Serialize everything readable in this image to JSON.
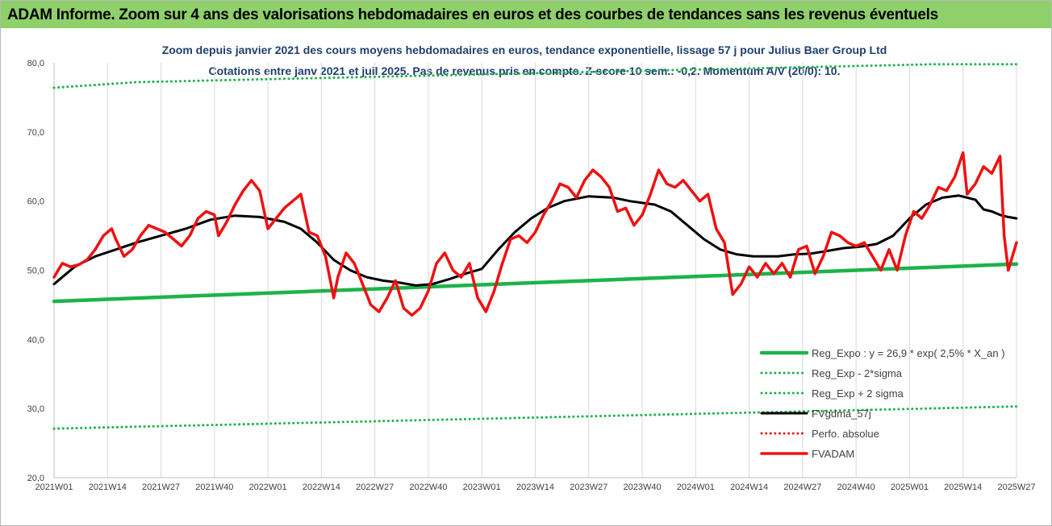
{
  "header": {
    "title": "ADAM Informe. Zoom sur 4 ans des valorisations hebdomadaires en euros et des courbes de tendances sans les revenus éventuels"
  },
  "chart_data": {
    "type": "line",
    "title": "Zoom depuis janvier 2021 des cours moyens hebdomadaires en euros, tendance exponentielle, lissage 57 j pour Julius Baer Group Ltd",
    "subtitle": "Cotations entre janv 2021 et juil 2025. Pas de revenus pris en compte. Z-score 10 sem.: -0,2. Momentum A/V (20/0): 10.",
    "xlabel": "",
    "ylabel": "",
    "ylim": [
      20,
      80
    ],
    "yticks": [
      "20,0",
      "30,0",
      "40,0",
      "50,0",
      "60,0",
      "70,0",
      "80,0"
    ],
    "xticks": [
      "2021W01",
      "2021W14",
      "2021W27",
      "2021W40",
      "2022W01",
      "2022W14",
      "2022W27",
      "2022W40",
      "2023W01",
      "2023W14",
      "2023W27",
      "2023W40",
      "2024W01",
      "2024W14",
      "2024W27",
      "2024W40",
      "2025W01",
      "2025W14",
      "2025W27"
    ],
    "grid": "vertical",
    "legend": "bottom-right",
    "series": [
      {
        "name": "Reg_Expo : y = 26,9 * exp( 2,5% * X_an )",
        "style": "solid",
        "color": "#1db34a",
        "points": [
          [
            0,
            45.5
          ],
          [
            234,
            50.9
          ]
        ]
      },
      {
        "name": "Reg_Exp - 2*sigma",
        "style": "dotted",
        "color": "#1db34a",
        "points": [
          [
            0,
            27.1
          ],
          [
            234,
            30.3
          ]
        ]
      },
      {
        "name": "Reg_Exp + 2 sigma",
        "style": "dotted",
        "color": "#1db34a",
        "points": [
          [
            0,
            76.4
          ],
          [
            20,
            77.2
          ],
          [
            214,
            79.8
          ],
          [
            234,
            79.8
          ]
        ]
      },
      {
        "name": "FVgdma_57j",
        "style": "solid",
        "color": "#000000",
        "points": [
          [
            0,
            48
          ],
          [
            5,
            50.5
          ],
          [
            10,
            52
          ],
          [
            15,
            53
          ],
          [
            20,
            54
          ],
          [
            26,
            55
          ],
          [
            32,
            56
          ],
          [
            38,
            57.3
          ],
          [
            44,
            57.9
          ],
          [
            50,
            57.7
          ],
          [
            56,
            57
          ],
          [
            60,
            56
          ],
          [
            64,
            54
          ],
          [
            68,
            51.5
          ],
          [
            72,
            50
          ],
          [
            76,
            49
          ],
          [
            80,
            48.5
          ],
          [
            84,
            48.2
          ],
          [
            88,
            47.8
          ],
          [
            92,
            48
          ],
          [
            96,
            48.7
          ],
          [
            100,
            49.5
          ],
          [
            104,
            50.2
          ],
          [
            108,
            53
          ],
          [
            112,
            55.5
          ],
          [
            116,
            57.5
          ],
          [
            120,
            59
          ],
          [
            124,
            60
          ],
          [
            130,
            60.7
          ],
          [
            136,
            60.5
          ],
          [
            140,
            60
          ],
          [
            146,
            59.5
          ],
          [
            150,
            58.5
          ],
          [
            154,
            56.5
          ],
          [
            158,
            54.5
          ],
          [
            162,
            53
          ],
          [
            166,
            52.3
          ],
          [
            170,
            52
          ],
          [
            176,
            52
          ],
          [
            180,
            52.3
          ],
          [
            184,
            52.4
          ],
          [
            188,
            52.8
          ],
          [
            192,
            53.2
          ],
          [
            196,
            53.4
          ],
          [
            200,
            53.8
          ],
          [
            204,
            55
          ],
          [
            208,
            57.5
          ],
          [
            212,
            59.5
          ],
          [
            216,
            60.5
          ],
          [
            220,
            60.8
          ],
          [
            224,
            60.2
          ],
          [
            226,
            58.8
          ],
          [
            228,
            58.5
          ],
          [
            230,
            58
          ],
          [
            232,
            57.7
          ],
          [
            234,
            57.5
          ]
        ]
      },
      {
        "name": "Perfo. absolue",
        "style": "dotted",
        "color": "#e02020",
        "points": []
      },
      {
        "name": "FVADAM",
        "style": "solid",
        "color": "#ee1111",
        "points": [
          [
            0,
            49
          ],
          [
            2,
            51
          ],
          [
            4,
            50.5
          ],
          [
            6,
            50.8
          ],
          [
            8,
            51.5
          ],
          [
            10,
            53
          ],
          [
            12,
            55
          ],
          [
            14,
            56
          ],
          [
            15,
            54.5
          ],
          [
            17,
            52
          ],
          [
            19,
            53
          ],
          [
            21,
            55
          ],
          [
            23,
            56.5
          ],
          [
            25,
            56
          ],
          [
            27,
            55.5
          ],
          [
            29,
            54.5
          ],
          [
            31,
            53.5
          ],
          [
            33,
            55
          ],
          [
            35,
            57.5
          ],
          [
            37,
            58.5
          ],
          [
            39,
            58
          ],
          [
            40,
            55
          ],
          [
            42,
            57
          ],
          [
            44,
            59.5
          ],
          [
            46,
            61.5
          ],
          [
            48,
            63
          ],
          [
            50,
            61.5
          ],
          [
            52,
            56
          ],
          [
            54,
            57.5
          ],
          [
            56,
            59
          ],
          [
            58,
            60
          ],
          [
            60,
            61
          ],
          [
            62,
            55.5
          ],
          [
            64,
            55
          ],
          [
            66,
            52
          ],
          [
            68,
            46
          ],
          [
            69,
            49
          ],
          [
            71,
            52.5
          ],
          [
            73,
            51
          ],
          [
            75,
            48
          ],
          [
            77,
            45
          ],
          [
            79,
            44
          ],
          [
            81,
            46
          ],
          [
            83,
            48.5
          ],
          [
            85,
            44.5
          ],
          [
            87,
            43.5
          ],
          [
            89,
            44.5
          ],
          [
            91,
            47
          ],
          [
            93,
            51
          ],
          [
            95,
            52.5
          ],
          [
            97,
            50
          ],
          [
            99,
            49
          ],
          [
            101,
            51
          ],
          [
            103,
            46
          ],
          [
            105,
            44
          ],
          [
            107,
            47
          ],
          [
            109,
            51
          ],
          [
            111,
            54.5
          ],
          [
            113,
            55
          ],
          [
            115,
            54
          ],
          [
            117,
            55.5
          ],
          [
            119,
            58
          ],
          [
            121,
            60
          ],
          [
            123,
            62.5
          ],
          [
            125,
            62
          ],
          [
            127,
            60.5
          ],
          [
            129,
            63
          ],
          [
            131,
            64.5
          ],
          [
            133,
            63.5
          ],
          [
            135,
            62
          ],
          [
            137,
            58.5
          ],
          [
            139,
            59
          ],
          [
            141,
            56.5
          ],
          [
            143,
            58
          ],
          [
            145,
            61
          ],
          [
            147,
            64.5
          ],
          [
            149,
            62.5
          ],
          [
            151,
            62
          ],
          [
            153,
            63
          ],
          [
            155,
            61.5
          ],
          [
            157,
            60
          ],
          [
            159,
            61
          ],
          [
            161,
            56
          ],
          [
            163,
            54
          ],
          [
            165,
            46.5
          ],
          [
            167,
            48
          ],
          [
            169,
            50.5
          ],
          [
            171,
            49
          ],
          [
            173,
            51
          ],
          [
            175,
            49.5
          ],
          [
            177,
            51
          ],
          [
            179,
            49
          ],
          [
            181,
            53
          ],
          [
            183,
            53.5
          ],
          [
            185,
            49.5
          ],
          [
            187,
            52
          ],
          [
            189,
            55.5
          ],
          [
            191,
            55
          ],
          [
            193,
            54
          ],
          [
            195,
            53.5
          ],
          [
            197,
            54
          ],
          [
            199,
            52
          ],
          [
            201,
            50
          ],
          [
            203,
            53
          ],
          [
            205,
            50
          ],
          [
            207,
            55
          ],
          [
            209,
            58.5
          ],
          [
            211,
            57.5
          ],
          [
            213,
            59.5
          ],
          [
            215,
            62
          ],
          [
            217,
            61.5
          ],
          [
            219,
            63.5
          ],
          [
            221,
            67
          ],
          [
            222,
            61
          ],
          [
            224,
            62.5
          ],
          [
            226,
            65
          ],
          [
            228,
            64
          ],
          [
            230,
            66.5
          ],
          [
            231,
            55
          ],
          [
            232,
            50
          ],
          [
            233,
            52
          ],
          [
            234,
            54
          ]
        ]
      }
    ]
  }
}
